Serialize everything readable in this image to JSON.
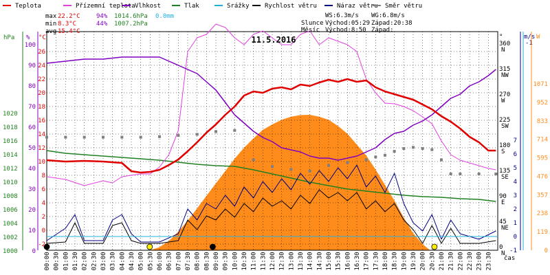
{
  "chart_data": {
    "type": "line",
    "date": "11.5.2016",
    "legend": [
      {
        "name": "Teplota",
        "color": "#e00000"
      },
      {
        "name": "Přízemní teplota",
        "color": "#e040e0"
      },
      {
        "name": "Vlhkost",
        "color": "#8000c0"
      },
      {
        "name": "Tlak",
        "color": "#208020"
      },
      {
        "name": "Srážky",
        "color": "#20b0e0"
      },
      {
        "name": "Rychlost větru",
        "color": "#000000"
      },
      {
        "name": "Náraz větru",
        "color": "#000080"
      },
      {
        "name": "Směr větru",
        "color": "#808080"
      }
    ],
    "stats": {
      "max": {
        "label": "max",
        "temp": "22.2°C",
        "hum": "94%",
        "press": "1014.6hPa",
        "rain": "0.0mm"
      },
      "min": {
        "label": "min",
        "temp": "8.3°C",
        "hum": "44%",
        "press": "1007.2hPa"
      },
      "avg": {
        "label": "avg",
        "temp": "15.4°C"
      }
    },
    "wind_info": {
      "ws": "WS:6.3m/s",
      "wg": "WG:6.8m/s"
    },
    "sun": {
      "label": "Slunce",
      "rise": "Východ:05:29",
      "set": "Západ:20:38"
    },
    "moon": {
      "label": "Měsíc",
      "rise": "Východ:8:50",
      "set": "Západ:"
    },
    "x_label": "čas",
    "x_ticks": [
      "00:00",
      "00:30",
      "01:00",
      "01:30",
      "02:00",
      "02:30",
      "03:00",
      "03:30",
      "04:00",
      "04:30",
      "05:00",
      "05:30",
      "06:00",
      "06:30",
      "07:00",
      "07:30",
      "08:00",
      "08:30",
      "09:00",
      "09:30",
      "10:00",
      "10:30",
      "11:00",
      "11:30",
      "12:00",
      "12:30",
      "13:00",
      "13:30",
      "14:00",
      "14:30",
      "15:00",
      "15:30",
      "16:00",
      "16:30",
      "17:00",
      "17:30",
      "18:00",
      "18:30",
      "19:00",
      "19:30",
      "20:00",
      "20:30",
      "21:00",
      "21:30",
      "22:00",
      "22:30",
      "23:00",
      "23:30"
    ],
    "axes": {
      "hpa": {
        "unit": "hPa",
        "ticks": [
          "1020",
          "1018",
          "1016",
          "1014",
          "1012",
          "1010",
          "1008",
          "1006",
          "1004",
          "1002",
          "1000"
        ]
      },
      "pct": {
        "unit": "%",
        "ticks": [
          "100",
          "90",
          "80",
          "70",
          "60",
          "50",
          "40",
          "30",
          "20",
          "10",
          "0"
        ]
      },
      "celsius": {
        "unit": "°C",
        "ticks": [
          "26",
          "24",
          "22",
          "20",
          "18",
          "16",
          "14",
          "12",
          "10",
          "8",
          "6",
          "4",
          "2",
          "0",
          "-2"
        ]
      },
      "deg": {
        "unit": "°",
        "ticks": [
          "360",
          "315",
          "270",
          "225",
          "180",
          "135",
          "90",
          "45",
          "0"
        ],
        "dirs": [
          "N",
          "NW",
          "W",
          "SW",
          "S",
          "SE",
          "E",
          "NE",
          "N"
        ]
      },
      "ms": {
        "unit": "m/s",
        "top": "-1",
        "ticks": [
          "7",
          "6",
          "5",
          "4",
          "3",
          "2",
          "1",
          "0",
          "-1"
        ]
      },
      "wm2": {
        "unit": "W",
        "ticks": [
          "1071",
          "952",
          "833",
          "714",
          "595",
          "476",
          "357",
          "238",
          "119",
          "0"
        ]
      }
    },
    "series": {
      "temperature": [
        [
          0,
          10.2
        ],
        [
          1,
          10.0
        ],
        [
          2,
          10.1
        ],
        [
          3,
          10.0
        ],
        [
          4,
          9.8
        ],
        [
          4.5,
          8.6
        ],
        [
          5,
          8.4
        ],
        [
          5.5,
          8.5
        ],
        [
          6,
          8.8
        ],
        [
          6.5,
          9.5
        ],
        [
          7,
          10.3
        ],
        [
          7.5,
          11.5
        ],
        [
          8,
          12.8
        ],
        [
          8.5,
          14.2
        ],
        [
          9,
          15.4
        ],
        [
          9.5,
          16.8
        ],
        [
          10,
          18.0
        ],
        [
          10.5,
          19.6
        ],
        [
          11,
          20.2
        ],
        [
          11.5,
          20.0
        ],
        [
          12,
          20.6
        ],
        [
          12.5,
          20.8
        ],
        [
          13,
          20.5
        ],
        [
          13.5,
          21.2
        ],
        [
          14,
          21.0
        ],
        [
          14.5,
          21.5
        ],
        [
          15,
          21.9
        ],
        [
          15.5,
          21.6
        ],
        [
          16,
          22.0
        ],
        [
          16.5,
          21.6
        ],
        [
          17,
          21.8
        ],
        [
          17.5,
          20.8
        ],
        [
          18,
          20.2
        ],
        [
          18.5,
          19.8
        ],
        [
          19,
          19.4
        ],
        [
          19.5,
          19.0
        ],
        [
          20,
          18.3
        ],
        [
          20.5,
          17.6
        ],
        [
          21,
          16.6
        ],
        [
          21.5,
          15.8
        ],
        [
          22,
          14.8
        ],
        [
          22.5,
          13.6
        ],
        [
          23,
          12.8
        ],
        [
          23.5,
          11.6
        ],
        [
          23.9,
          11.6
        ]
      ],
      "ground_temp": [
        [
          0,
          7.8
        ],
        [
          1,
          7.4
        ],
        [
          2,
          6.5
        ],
        [
          3,
          7.2
        ],
        [
          3.5,
          6.9
        ],
        [
          4,
          7.8
        ],
        [
          4.5,
          8.0
        ],
        [
          5,
          8.2
        ],
        [
          5.5,
          8.2
        ],
        [
          6,
          9.2
        ],
        [
          6.5,
          11.0
        ],
        [
          7,
          14.5
        ],
        [
          7.5,
          26.0
        ],
        [
          8,
          28.0
        ],
        [
          8.5,
          28.5
        ],
        [
          9,
          30.0
        ],
        [
          9.5,
          29.5
        ],
        [
          10,
          28.0
        ],
        [
          10.5,
          27.0
        ],
        [
          11,
          28.5
        ],
        [
          11.5,
          29.0
        ],
        [
          12,
          28.0
        ],
        [
          12.5,
          27.0
        ],
        [
          13,
          27.0
        ],
        [
          13.5,
          28.5
        ],
        [
          14,
          29.0
        ],
        [
          14.5,
          27.0
        ],
        [
          15,
          28.0
        ],
        [
          15.5,
          27.5
        ],
        [
          16,
          27.0
        ],
        [
          16.5,
          26.0
        ],
        [
          17,
          22.0
        ],
        [
          17.5,
          20.0
        ],
        [
          18,
          18.5
        ],
        [
          18.5,
          18.4
        ],
        [
          19,
          18.0
        ],
        [
          19.5,
          17.4
        ],
        [
          20,
          16.5
        ],
        [
          20.5,
          15.5
        ],
        [
          21,
          13.0
        ],
        [
          21.5,
          11.0
        ],
        [
          22,
          10.2
        ],
        [
          22.5,
          9.8
        ],
        [
          23,
          9.4
        ],
        [
          23.5,
          9.0
        ],
        [
          23.9,
          8.8
        ]
      ],
      "humidity": [
        [
          0,
          91
        ],
        [
          1,
          92
        ],
        [
          2,
          93
        ],
        [
          3,
          93
        ],
        [
          4,
          94
        ],
        [
          5,
          94
        ],
        [
          6,
          94
        ],
        [
          6.5,
          92
        ],
        [
          7,
          90
        ],
        [
          7.5,
          88
        ],
        [
          8,
          86
        ],
        [
          8.5,
          82
        ],
        [
          9,
          78
        ],
        [
          9.5,
          72
        ],
        [
          10,
          66
        ],
        [
          10.5,
          62
        ],
        [
          11,
          58
        ],
        [
          11.5,
          55
        ],
        [
          12,
          53
        ],
        [
          12.5,
          50
        ],
        [
          13,
          49
        ],
        [
          13.5,
          48
        ],
        [
          14,
          46
        ],
        [
          14.5,
          45
        ],
        [
          15,
          45
        ],
        [
          15.5,
          44
        ],
        [
          16,
          45
        ],
        [
          16.5,
          46
        ],
        [
          17,
          48
        ],
        [
          17.5,
          50
        ],
        [
          18,
          54
        ],
        [
          18.5,
          57
        ],
        [
          19,
          58
        ],
        [
          19.5,
          61
        ],
        [
          20,
          63
        ],
        [
          20.5,
          66
        ],
        [
          21,
          70
        ],
        [
          21.5,
          74
        ],
        [
          22,
          76
        ],
        [
          22.5,
          80
        ],
        [
          23,
          82
        ],
        [
          23.5,
          85
        ],
        [
          23.9,
          88
        ]
      ],
      "pressure": [
        [
          0,
          1014.6
        ],
        [
          1,
          1014.2
        ],
        [
          2,
          1014.0
        ],
        [
          3,
          1013.8
        ],
        [
          4,
          1013.6
        ],
        [
          5,
          1013.4
        ],
        [
          6,
          1013.2
        ],
        [
          7,
          1012.9
        ],
        [
          8,
          1012.6
        ],
        [
          9,
          1012.4
        ],
        [
          10,
          1012.3
        ],
        [
          11,
          1011.8
        ],
        [
          12,
          1011.2
        ],
        [
          13,
          1010.6
        ],
        [
          14,
          1010.0
        ],
        [
          15,
          1009.5
        ],
        [
          16,
          1009.0
        ],
        [
          17,
          1008.7
        ],
        [
          18,
          1008.4
        ],
        [
          19,
          1008.1
        ],
        [
          20,
          1007.9
        ],
        [
          21,
          1007.8
        ],
        [
          22,
          1007.6
        ],
        [
          23,
          1007.5
        ],
        [
          23.9,
          1007.2
        ]
      ],
      "wind_dir": [
        [
          0,
          200
        ],
        [
          1,
          200
        ],
        [
          2,
          200
        ],
        [
          3,
          200
        ],
        [
          4,
          200
        ],
        [
          5,
          200
        ],
        [
          6,
          201
        ],
        [
          7,
          203
        ],
        [
          8,
          205
        ],
        [
          9,
          210
        ],
        [
          10,
          212
        ],
        [
          11,
          160
        ],
        [
          12,
          148
        ],
        [
          13,
          143
        ],
        [
          14,
          140
        ],
        [
          15,
          150
        ],
        [
          16,
          155
        ],
        [
          17,
          160
        ],
        [
          17.5,
          165
        ],
        [
          18,
          168
        ],
        [
          18.5,
          175
        ],
        [
          19,
          180
        ],
        [
          19.5,
          182
        ],
        [
          20,
          180
        ],
        [
          20.5,
          178
        ],
        [
          21,
          160
        ],
        [
          21.5,
          135
        ],
        [
          22,
          135
        ],
        [
          23,
          135
        ],
        [
          23.9,
          135
        ]
      ],
      "wind_speed": [
        [
          0,
          -0.5
        ],
        [
          1,
          -0.4
        ],
        [
          1.5,
          1.0
        ],
        [
          2,
          -0.5
        ],
        [
          3,
          -0.5
        ],
        [
          3.5,
          0.8
        ],
        [
          4,
          1.0
        ],
        [
          4.5,
          -0.3
        ],
        [
          5,
          -0.5
        ],
        [
          6,
          -0.5
        ],
        [
          7,
          -0.3
        ],
        [
          7.5,
          1.2
        ],
        [
          8,
          0.5
        ],
        [
          8.5,
          1.5
        ],
        [
          9,
          1.2
        ],
        [
          9.5,
          2.0
        ],
        [
          10,
          1.4
        ],
        [
          10.5,
          2.4
        ],
        [
          11,
          1.8
        ],
        [
          11.5,
          2.8
        ],
        [
          12,
          2.2
        ],
        [
          12.5,
          2.6
        ],
        [
          13,
          2.0
        ],
        [
          13.5,
          3.0
        ],
        [
          14,
          2.4
        ],
        [
          14.5,
          3.4
        ],
        [
          15,
          2.8
        ],
        [
          15.5,
          3.2
        ],
        [
          16,
          2.6
        ],
        [
          16.5,
          3.2
        ],
        [
          17,
          2.0
        ],
        [
          17.5,
          2.6
        ],
        [
          18,
          1.8
        ],
        [
          18.5,
          2.4
        ],
        [
          19,
          1.2
        ],
        [
          19.5,
          0.5
        ],
        [
          20,
          -0.5
        ],
        [
          20.5,
          0.8
        ],
        [
          21,
          -0.5
        ],
        [
          21.5,
          0.6
        ],
        [
          22,
          -0.5
        ],
        [
          23,
          -0.5
        ],
        [
          23.9,
          -0.3
        ]
      ],
      "wind_gust": [
        [
          0,
          -0.3
        ],
        [
          1,
          0.6
        ],
        [
          1.5,
          1.6
        ],
        [
          2,
          -0.3
        ],
        [
          3,
          -0.3
        ],
        [
          3.5,
          1.2
        ],
        [
          4,
          1.6
        ],
        [
          4.5,
          0.2
        ],
        [
          5,
          -0.4
        ],
        [
          6,
          -0.4
        ],
        [
          7,
          0.2
        ],
        [
          7.5,
          2.0
        ],
        [
          8,
          1.2
        ],
        [
          8.5,
          2.4
        ],
        [
          9,
          2.0
        ],
        [
          9.5,
          3.0
        ],
        [
          10,
          2.2
        ],
        [
          10.5,
          3.6
        ],
        [
          11,
          2.8
        ],
        [
          11.5,
          4.0
        ],
        [
          12,
          3.2
        ],
        [
          12.5,
          4.2
        ],
        [
          13,
          3.4
        ],
        [
          13.5,
          4.6
        ],
        [
          14,
          3.8
        ],
        [
          14.5,
          4.8
        ],
        [
          15,
          4.0
        ],
        [
          15.5,
          5.0
        ],
        [
          16,
          4.2
        ],
        [
          16.5,
          5.2
        ],
        [
          17,
          3.6
        ],
        [
          17.5,
          4.4
        ],
        [
          18,
          3.2
        ],
        [
          18.5,
          4.6
        ],
        [
          19,
          2.4
        ],
        [
          19.5,
          1.0
        ],
        [
          20,
          0.4
        ],
        [
          20.5,
          1.6
        ],
        [
          21,
          -0.2
        ],
        [
          21.5,
          1.2
        ],
        [
          22,
          0.2
        ],
        [
          23,
          -0.2
        ],
        [
          23.9,
          0.4
        ]
      ],
      "solar": [
        [
          5.5,
          0
        ],
        [
          6,
          20
        ],
        [
          6.5,
          60
        ],
        [
          7,
          120
        ],
        [
          7.5,
          190
        ],
        [
          8,
          270
        ],
        [
          8.5,
          350
        ],
        [
          9,
          430
        ],
        [
          9.5,
          510
        ],
        [
          10,
          590
        ],
        [
          10.5,
          660
        ],
        [
          11,
          720
        ],
        [
          11.5,
          775
        ],
        [
          12,
          810
        ],
        [
          12.5,
          840
        ],
        [
          13,
          860
        ],
        [
          13.5,
          870
        ],
        [
          14,
          872
        ],
        [
          14.5,
          860
        ],
        [
          15,
          840
        ],
        [
          15.5,
          800
        ],
        [
          16,
          750
        ],
        [
          16.5,
          680
        ],
        [
          17,
          610
        ],
        [
          17.5,
          520
        ],
        [
          18,
          420
        ],
        [
          18.5,
          320
        ],
        [
          19,
          210
        ],
        [
          19.5,
          110
        ],
        [
          20,
          40
        ],
        [
          20.4,
          0
        ]
      ]
    },
    "markers": [
      {
        "kind": "moon",
        "x": 0,
        "color": "#000000"
      },
      {
        "kind": "sun",
        "x": 5.48,
        "color": "#ffee00"
      },
      {
        "kind": "moon",
        "x": 8.83,
        "color": "#000000"
      },
      {
        "kind": "sun",
        "x": 20.63,
        "color": "#ffee00"
      }
    ],
    "colors": {
      "grid": "#000000",
      "solar_fill": "#ff8c1a"
    }
  }
}
